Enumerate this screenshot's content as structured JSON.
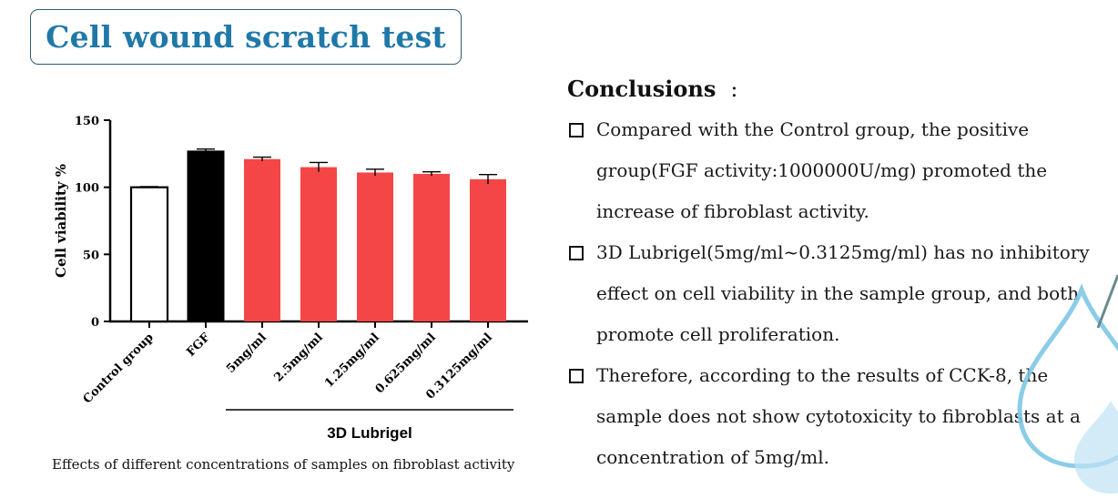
{
  "title": "Cell wound scratch test",
  "caption": "Effects of different concentrations of samples on fibroblast activity",
  "conclusions": {
    "heading": "Conclusions",
    "colon": ":",
    "items": [
      "Compared with the Control group, the positive group(FGF activity:1000000U/mg) promoted the increase of fibroblast activity.",
      "3D Lubrigel(5mg/ml~0.3125mg/ml)  has no inhibitory effect on cell viability in the sample group, and both promote cell proliferation.",
      "Therefore, according to the results of CCK-8, the sample does not show cytotoxicity to fibroblasts at a concentration of 5mg/ml."
    ]
  },
  "colors": {
    "title_text": "#1f79a8",
    "title_border": "#2e5c78",
    "control_fill": "#ffffff",
    "fgf_fill": "#000000",
    "sample_fill": "#f44646",
    "drop": "#7ec6e6"
  },
  "chart_data": {
    "type": "bar",
    "title": "",
    "xlabel": "",
    "ylabel": "Cell viability %",
    "ylim": [
      0,
      150
    ],
    "yticks": [
      0,
      50,
      100,
      150
    ],
    "categories": [
      "Control group",
      "FGF",
      "5mg/ml",
      "2.5mg/ml",
      "1.25mg/ml",
      "0.625mg/ml",
      "0.3125mg/ml"
    ],
    "values": [
      100,
      127,
      121,
      115,
      111,
      110,
      106
    ],
    "errors": [
      0.5,
      1.5,
      1.5,
      3.5,
      2.5,
      1.5,
      3.5
    ],
    "bar_colors": [
      "#ffffff",
      "#000000",
      "#f44646",
      "#f44646",
      "#f44646",
      "#f44646",
      "#f44646"
    ],
    "group_label": "3D Lubrigel",
    "group_span": [
      "5mg/ml",
      "0.3125mg/ml"
    ],
    "grid": false,
    "legend": "none"
  }
}
